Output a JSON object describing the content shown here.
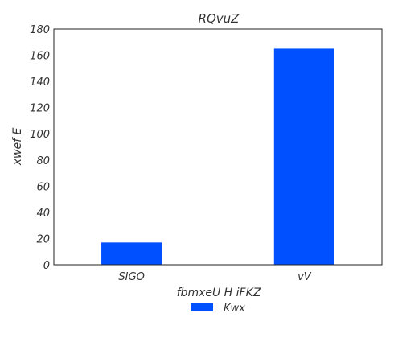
{
  "chart_data": {
    "type": "bar",
    "title": "RQvuZ",
    "xlabel": "fbmxeU H  iFKZ",
    "ylabel": "xwef E",
    "categories": [
      "SIGO",
      "vV"
    ],
    "series": [
      {
        "name": "Kwx",
        "values": [
          17,
          165
        ],
        "color": "#0050ff"
      }
    ],
    "ylim": [
      0,
      180
    ],
    "yticks": [
      0,
      20,
      40,
      60,
      80,
      100,
      120,
      140,
      160,
      180
    ],
    "grid": false,
    "legend": "bottom-center"
  }
}
